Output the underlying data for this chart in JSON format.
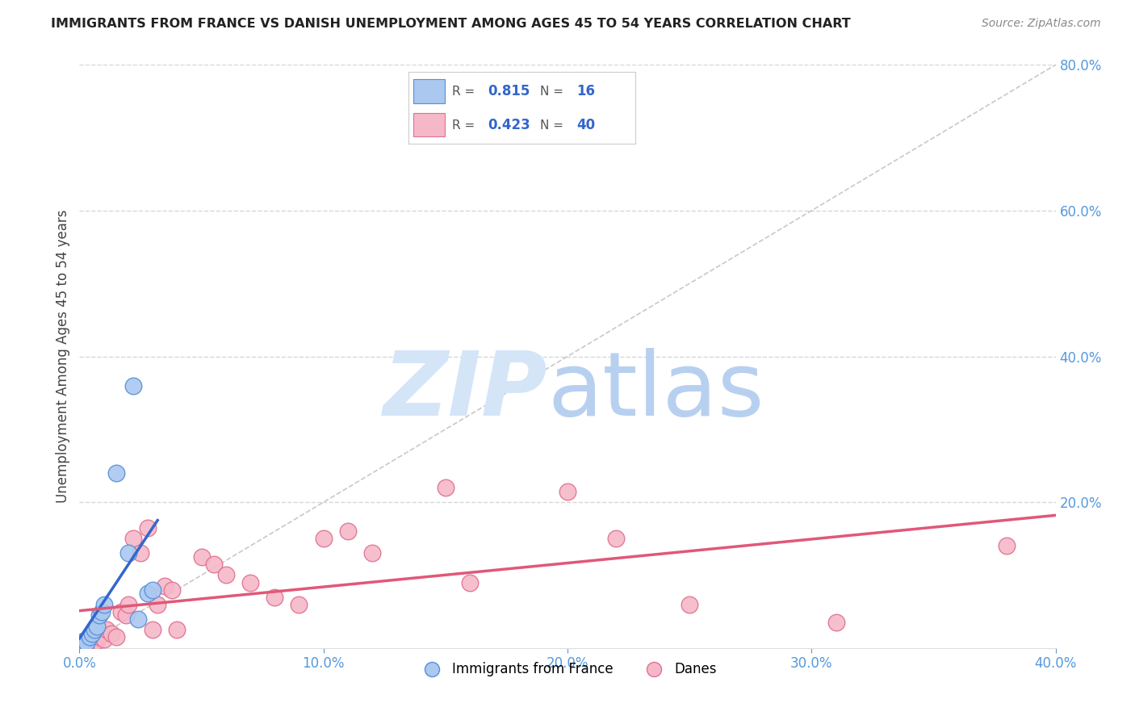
{
  "title": "IMMIGRANTS FROM FRANCE VS DANISH UNEMPLOYMENT AMONG AGES 45 TO 54 YEARS CORRELATION CHART",
  "source": "Source: ZipAtlas.com",
  "ylabel": "Unemployment Among Ages 45 to 54 years",
  "xlim": [
    0.0,
    0.4
  ],
  "ylim": [
    0.0,
    0.8
  ],
  "x_ticks": [
    0.0,
    0.1,
    0.2,
    0.3,
    0.4
  ],
  "x_tick_labels": [
    "0.0%",
    "10.0%",
    "20.0%",
    "30.0%",
    "40.0%"
  ],
  "y_ticks_right": [
    0.2,
    0.4,
    0.6,
    0.8
  ],
  "y_tick_labels_right": [
    "20.0%",
    "40.0%",
    "60.0%",
    "80.0%"
  ],
  "blue_R": 0.815,
  "blue_N": 16,
  "pink_R": 0.423,
  "pink_N": 40,
  "blue_color": "#aac8f0",
  "blue_edge_color": "#5590d8",
  "blue_line_color": "#3366cc",
  "pink_color": "#f5b8c8",
  "pink_edge_color": "#e07090",
  "pink_line_color": "#e05878",
  "ref_line_color": "#bbbbbb",
  "grid_color": "#cccccc",
  "title_color": "#222222",
  "axis_label_color": "#444444",
  "right_tick_color": "#5599dd",
  "watermark_zip_color": "#d5e5f8",
  "watermark_atlas_color": "#b8d0f0",
  "legend_box_color": "#e8e8e8",
  "legend_text_color": "#555555",
  "legend_val_color": "#3366cc",
  "background_color": "#ffffff",
  "blue_scatter_x": [
    0.001,
    0.002,
    0.003,
    0.004,
    0.005,
    0.006,
    0.007,
    0.008,
    0.009,
    0.01,
    0.015,
    0.02,
    0.022,
    0.024,
    0.028,
    0.03
  ],
  "blue_scatter_y": [
    0.005,
    0.01,
    0.008,
    0.015,
    0.02,
    0.025,
    0.03,
    0.045,
    0.05,
    0.06,
    0.24,
    0.13,
    0.36,
    0.04,
    0.075,
    0.08
  ],
  "pink_scatter_x": [
    0.001,
    0.002,
    0.003,
    0.004,
    0.005,
    0.006,
    0.007,
    0.008,
    0.009,
    0.01,
    0.011,
    0.013,
    0.015,
    0.017,
    0.019,
    0.02,
    0.022,
    0.025,
    0.028,
    0.03,
    0.032,
    0.035,
    0.038,
    0.04,
    0.05,
    0.055,
    0.06,
    0.07,
    0.08,
    0.09,
    0.1,
    0.11,
    0.12,
    0.15,
    0.16,
    0.2,
    0.22,
    0.25,
    0.31,
    0.38
  ],
  "pink_scatter_y": [
    0.005,
    0.01,
    0.01,
    0.015,
    0.008,
    0.012,
    0.01,
    0.015,
    0.02,
    0.012,
    0.025,
    0.02,
    0.015,
    0.05,
    0.045,
    0.06,
    0.15,
    0.13,
    0.165,
    0.025,
    0.06,
    0.085,
    0.08,
    0.025,
    0.125,
    0.115,
    0.1,
    0.09,
    0.07,
    0.06,
    0.15,
    0.16,
    0.13,
    0.22,
    0.09,
    0.215,
    0.15,
    0.06,
    0.035,
    0.14
  ]
}
